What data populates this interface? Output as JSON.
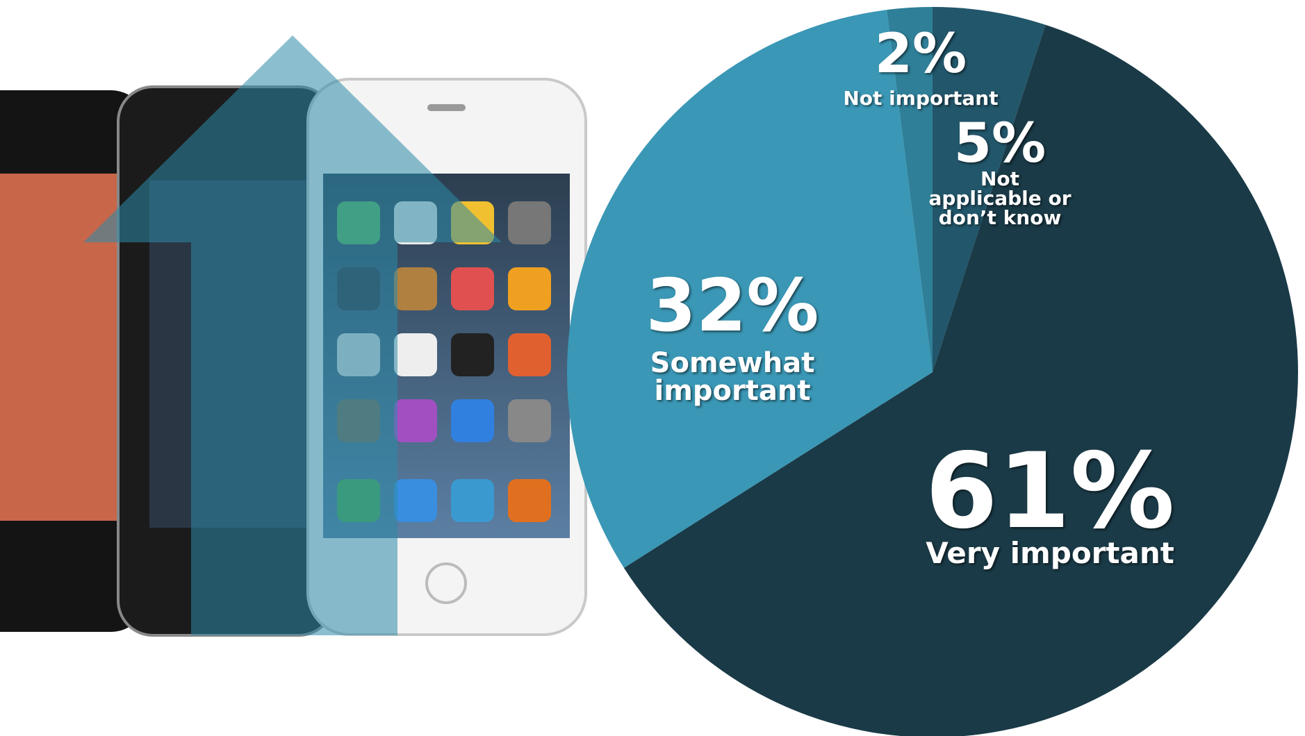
{
  "chart_data": {
    "type": "pie",
    "categories": [
      "Not applicable or don’t know",
      "Very important",
      "Somewhat important",
      "Not important"
    ],
    "values": [
      5,
      61,
      32,
      2
    ],
    "value_labels": [
      "5%",
      "61%",
      "32%",
      "2%"
    ],
    "colors": [
      "#22566a",
      "#1a3a47",
      "#3a97b5",
      "#2f7f98"
    ]
  }
}
